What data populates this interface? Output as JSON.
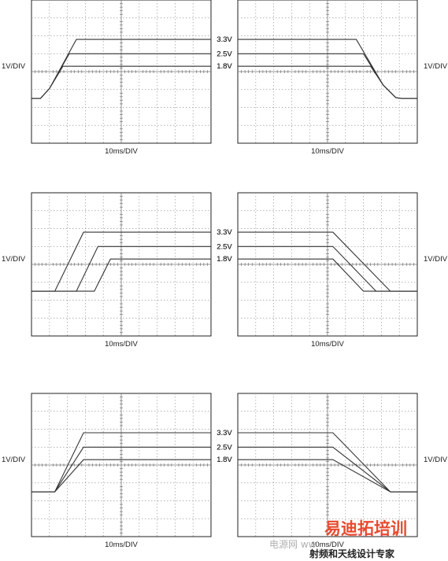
{
  "colors": {
    "trace": "#333333",
    "grid": "#9a9a9a",
    "frame": "#222222",
    "watermark_red": "#e84a2f",
    "watermark_gray": "#b0b0b0"
  },
  "labels": {
    "vertical_scale": "1V/DIV",
    "horizontal_scale": "10ms/DIV"
  },
  "watermark": {
    "logo_text": "易迪拓培训",
    "tagline": "射频和天线设计专家",
    "site_text": "电源网 ww"
  },
  "chart_data": [
    {
      "type": "line",
      "xlabel": "10ms/DIV",
      "ylabel": "1V/DIV",
      "xlim": [
        0,
        100
      ],
      "ylim": [
        -2.5,
        5.5
      ],
      "grid": true,
      "series": [
        {
          "name": "3.3V",
          "x": [
            0,
            5,
            10,
            25,
            100
          ],
          "values": [
            0,
            0,
            0.55,
            3.3,
            3.3
          ]
        },
        {
          "name": "2.5V",
          "x": [
            0,
            5,
            10,
            21,
            100
          ],
          "values": [
            0,
            0,
            0.55,
            2.5,
            2.5
          ]
        },
        {
          "name": "1.8V",
          "x": [
            0,
            5,
            10,
            17.5,
            100
          ],
          "values": [
            0,
            0,
            0.55,
            1.8,
            1.8
          ]
        }
      ]
    },
    {
      "type": "line",
      "xlabel": "10ms/DIV",
      "ylabel": "1V/DIV",
      "xlim": [
        0,
        100
      ],
      "ylim": [
        -2.5,
        5.5
      ],
      "grid": true,
      "series": [
        {
          "name": "3.3V",
          "x": [
            0,
            66,
            81,
            88,
            91,
            100
          ],
          "values": [
            3.3,
            3.3,
            0.75,
            0.05,
            0,
            0
          ]
        },
        {
          "name": "2.5V",
          "x": [
            0,
            70,
            81,
            88,
            91,
            100
          ],
          "values": [
            2.5,
            2.5,
            0.75,
            0.05,
            0,
            0
          ]
        },
        {
          "name": "1.8V",
          "x": [
            0,
            74,
            81,
            88,
            91,
            100
          ],
          "values": [
            1.8,
            1.8,
            0.75,
            0.05,
            0,
            0
          ]
        }
      ]
    },
    {
      "type": "line",
      "xlabel": "10ms/DIV",
      "ylabel": "1V/DIV",
      "xlim": [
        0,
        100
      ],
      "ylim": [
        -2.5,
        5.5
      ],
      "grid": true,
      "series": [
        {
          "name": "3.3V",
          "x": [
            0,
            13,
            29,
            100
          ],
          "values": [
            0,
            0,
            3.3,
            3.3
          ]
        },
        {
          "name": "2.5V",
          "x": [
            0,
            25,
            37,
            100
          ],
          "values": [
            0,
            0,
            2.5,
            2.5
          ]
        },
        {
          "name": "1.8V",
          "x": [
            0,
            35,
            44,
            100
          ],
          "values": [
            0,
            0,
            1.8,
            1.8
          ]
        }
      ]
    },
    {
      "type": "line",
      "xlabel": "10ms/DIV",
      "ylabel": "1V/DIV",
      "xlim": [
        0,
        100
      ],
      "ylim": [
        -2.5,
        5.5
      ],
      "grid": true,
      "series": [
        {
          "name": "3.3V",
          "x": [
            0,
            53,
            85,
            100
          ],
          "values": [
            3.3,
            3.3,
            0,
            0
          ]
        },
        {
          "name": "2.5V",
          "x": [
            0,
            53,
            77,
            100
          ],
          "values": [
            2.5,
            2.5,
            0,
            0
          ]
        },
        {
          "name": "1.8V",
          "x": [
            0,
            53,
            70,
            100
          ],
          "values": [
            1.8,
            1.8,
            0,
            0
          ]
        }
      ]
    },
    {
      "type": "line",
      "xlabel": "10ms/DIV",
      "ylabel": "1V/DIV",
      "xlim": [
        0,
        100
      ],
      "ylim": [
        -2.5,
        5.5
      ],
      "grid": true,
      "series": [
        {
          "name": "3.3V",
          "x": [
            0,
            13,
            29,
            100
          ],
          "values": [
            0,
            0,
            3.3,
            3.3
          ]
        },
        {
          "name": "2.5V",
          "x": [
            0,
            13,
            29,
            100
          ],
          "values": [
            0,
            0,
            2.5,
            2.5
          ]
        },
        {
          "name": "1.8V",
          "x": [
            0,
            13,
            29,
            100
          ],
          "values": [
            0,
            0,
            1.8,
            1.8
          ]
        }
      ]
    },
    {
      "type": "line",
      "xlabel": "10ms/DIV",
      "ylabel": "1V/DIV",
      "xlim": [
        0,
        100
      ],
      "ylim": [
        -2.5,
        5.5
      ],
      "grid": true,
      "series": [
        {
          "name": "3.3V",
          "x": [
            0,
            53,
            85,
            100
          ],
          "values": [
            3.3,
            3.3,
            0,
            0
          ]
        },
        {
          "name": "2.5V",
          "x": [
            0,
            53,
            85,
            100
          ],
          "values": [
            2.5,
            2.5,
            0,
            0
          ]
        },
        {
          "name": "1.8V",
          "x": [
            0,
            53,
            85,
            100
          ],
          "values": [
            1.8,
            1.8,
            0,
            0
          ]
        }
      ]
    }
  ]
}
